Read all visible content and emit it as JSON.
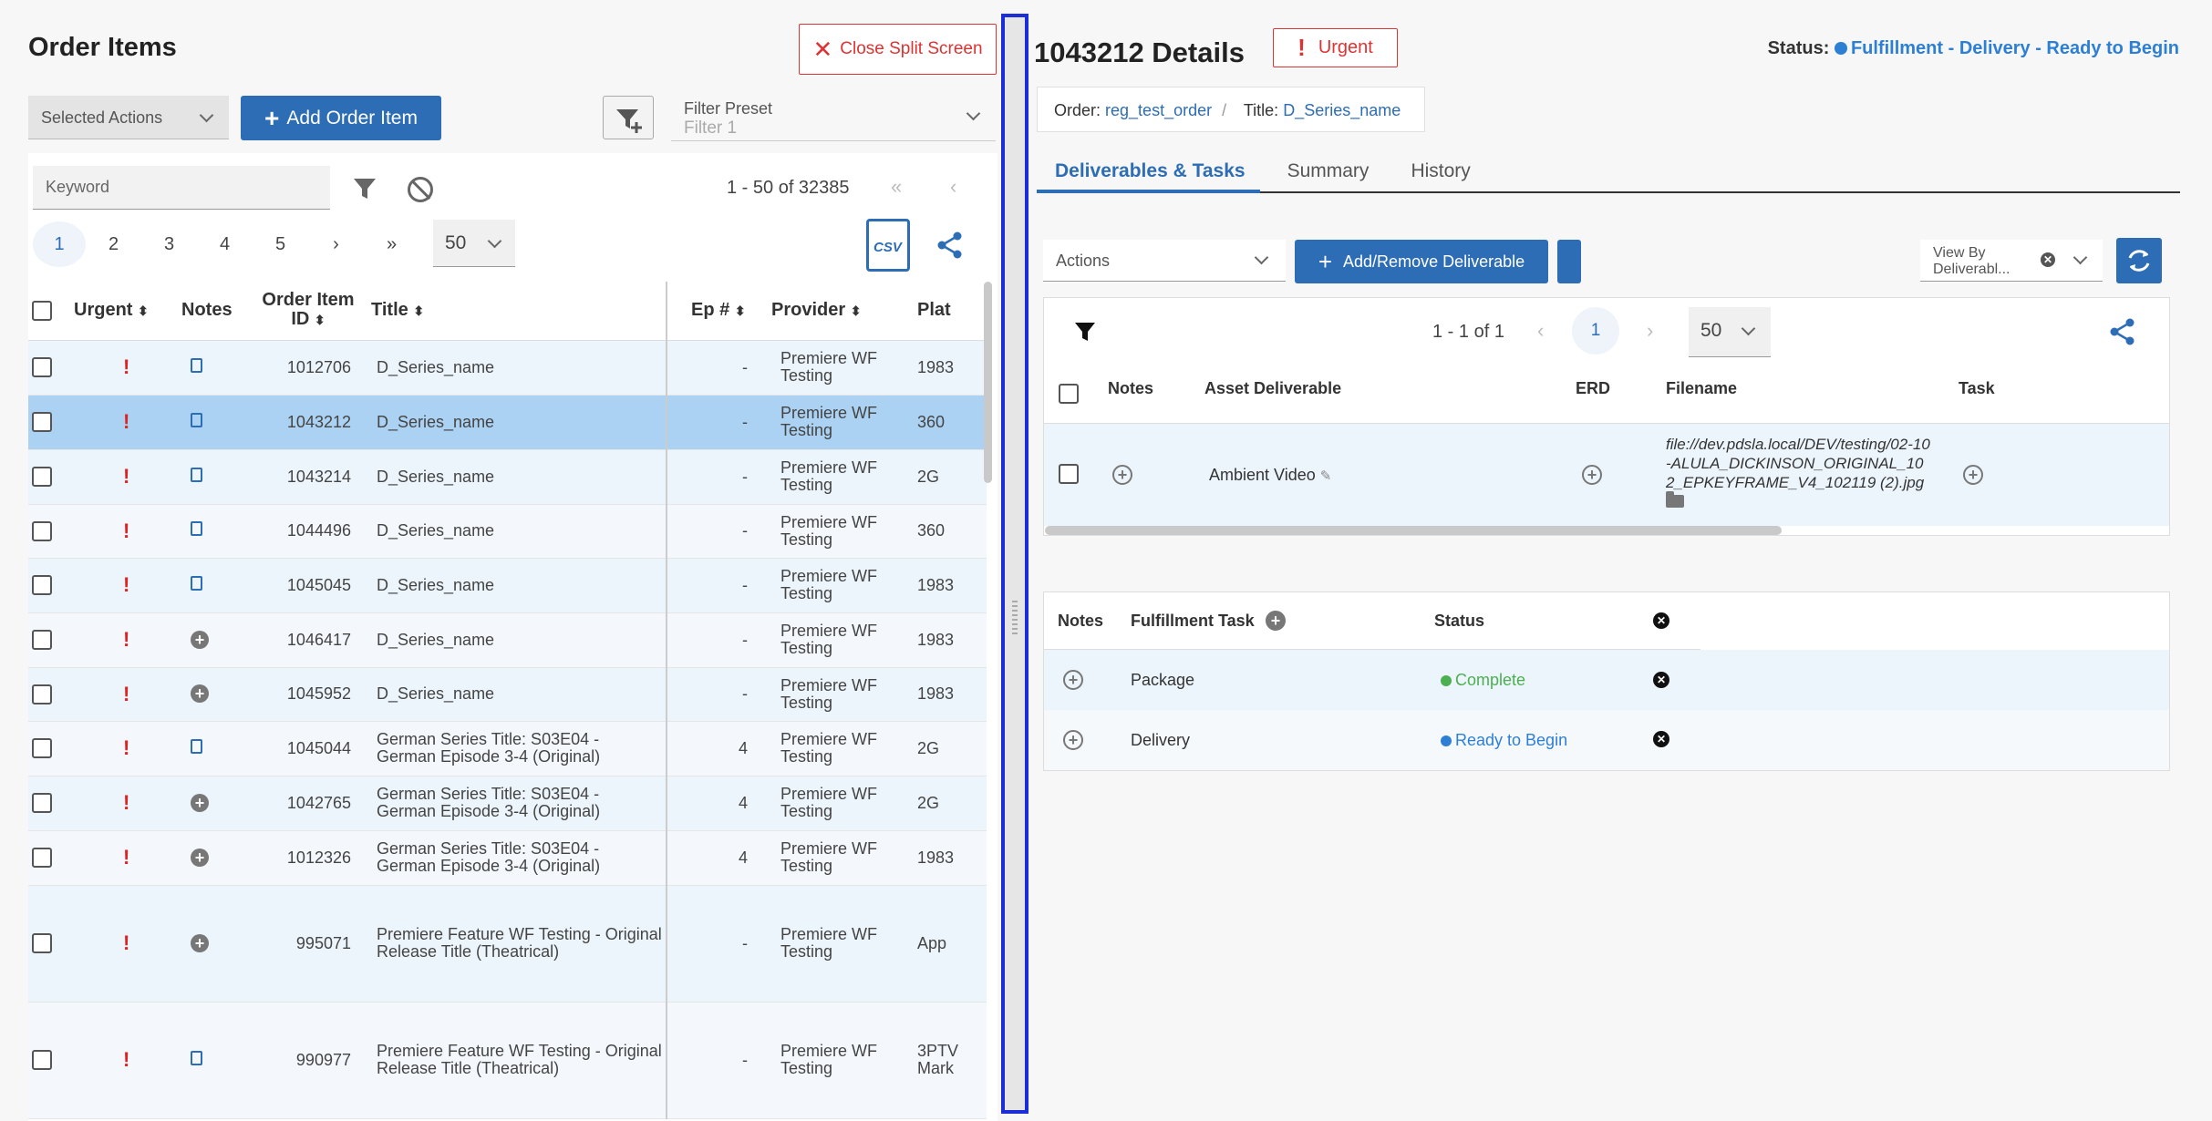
{
  "left": {
    "title": "Order Items",
    "close_split": "Close Split Screen",
    "selected_actions": "Selected Actions",
    "add_order_item": "Add Order Item",
    "filter_preset_label": "Filter Preset",
    "filter_preset_placeholder": "Filter 1",
    "keyword_placeholder": "Keyword",
    "range": "1 - 50 of 32385",
    "first": "«",
    "prev": "‹",
    "pages": [
      "1",
      "2",
      "3",
      "4",
      "5",
      "›",
      "»"
    ],
    "per_page": "50",
    "csv": "CSV",
    "columns": [
      "Urgent",
      "Notes",
      "Order Item ID",
      "Title",
      "Ep #",
      "Provider",
      "Plat"
    ],
    "rows": [
      {
        "id": "1012706",
        "title": "D_Series_name",
        "ep": "-",
        "provider": "Premiere WF Testing",
        "plat": "1983",
        "note": "doc"
      },
      {
        "id": "1043212",
        "title": "D_Series_name",
        "ep": "-",
        "provider": "Premiere WF Testing",
        "plat": "360",
        "note": "doc"
      },
      {
        "id": "1043214",
        "title": "D_Series_name",
        "ep": "-",
        "provider": "Premiere WF Testing",
        "plat": "2G",
        "note": "doc"
      },
      {
        "id": "1044496",
        "title": "D_Series_name",
        "ep": "-",
        "provider": "Premiere WF Testing",
        "plat": "360",
        "note": "doc"
      },
      {
        "id": "1045045",
        "title": "D_Series_name",
        "ep": "-",
        "provider": "Premiere WF Testing",
        "plat": "1983",
        "note": "doc"
      },
      {
        "id": "1046417",
        "title": "D_Series_name",
        "ep": "-",
        "provider": "Premiere WF Testing",
        "plat": "1983",
        "note": "plus"
      },
      {
        "id": "1045952",
        "title": "D_Series_name",
        "ep": "-",
        "provider": "Premiere WF Testing",
        "plat": "1983",
        "note": "plus"
      },
      {
        "id": "1045044",
        "title": "German Series Title: S03E04 - German Episode 3-4 (Original)",
        "ep": "4",
        "provider": "Premiere WF Testing",
        "plat": "2G",
        "note": "doc"
      },
      {
        "id": "1042765",
        "title": "German Series Title: S03E04 - German Episode 3-4 (Original)",
        "ep": "4",
        "provider": "Premiere WF Testing",
        "plat": "2G",
        "note": "plus"
      },
      {
        "id": "1012326",
        "title": "German Series Title: S03E04 - German Episode 3-4 (Original)",
        "ep": "4",
        "provider": "Premiere WF Testing",
        "plat": "1983",
        "note": "plus"
      },
      {
        "id": "995071",
        "title": "Premiere Feature WF Testing - Original Release Title (Theatrical)",
        "ep": "-",
        "provider": "Premiere WF Testing",
        "plat": "App",
        "note": "plus"
      },
      {
        "id": "990977",
        "title": "Premiere Feature WF Testing - Original Release Title (Theatrical)",
        "ep": "-",
        "provider": "Premiere WF Testing",
        "plat": "3PTV Mark",
        "note": "doc"
      }
    ]
  },
  "right": {
    "title": "1043212 Details",
    "urgent": "Urgent",
    "status_label": "Status:",
    "status_value": "Fulfillment - Delivery - Ready to Begin",
    "status_color": "#2d7fd4",
    "order_label": "Order:",
    "order_value": "reg_test_order",
    "title_label": "Title:",
    "title_value": "D_Series_name",
    "tabs": [
      "Deliverables & Tasks",
      "Summary",
      "History"
    ],
    "actions": "Actions",
    "add_remove": "Add/Remove Deliverable",
    "view_by": "View By Deliverabl...",
    "range": "1 - 1 of 1",
    "prev": "‹",
    "page": "1",
    "next": "›",
    "per_page": "50",
    "deliv_columns": [
      "Notes",
      "Asset Deliverable",
      "ERD",
      "Filename",
      "Task"
    ],
    "deliverable": {
      "name": "Ambient Video",
      "filename": "file://dev.pdsla.local/DEV/testing/02-10-ALULA_DICKINSON_ORIGINAL_102_EPKEYFRAME_V4_102119 (2).jpg"
    },
    "task_columns": [
      "Notes",
      "Fulfillment Task",
      "Status"
    ],
    "tasks": [
      {
        "name": "Package",
        "status": "Complete",
        "color": "#4caf50"
      },
      {
        "name": "Delivery",
        "status": "Ready to Begin",
        "color": "#2d7fd4"
      }
    ]
  }
}
